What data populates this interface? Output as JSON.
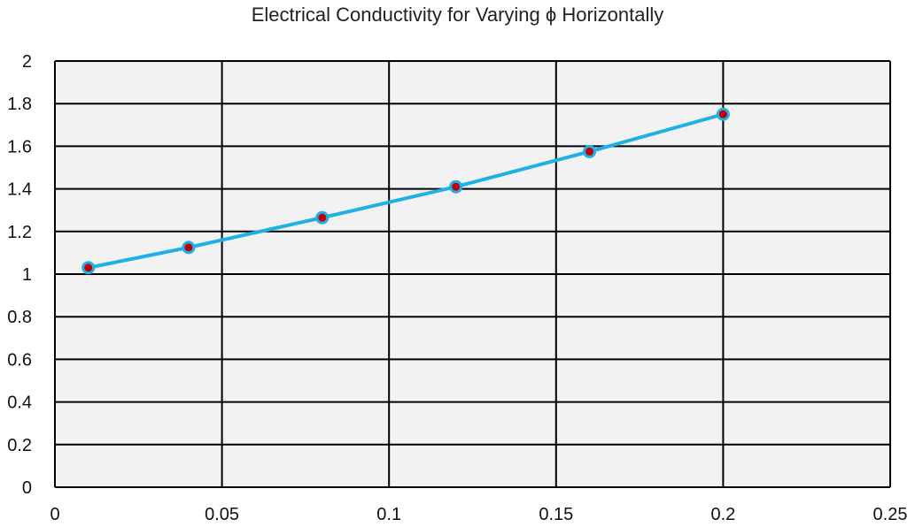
{
  "chart_data": {
    "type": "line",
    "title": "Electrical Conductivity for Varying ϕ Horizontally",
    "xlabel": "",
    "ylabel": "",
    "xlim": [
      0,
      0.25
    ],
    "ylim": [
      0,
      2
    ],
    "x_ticks": [
      "0",
      "0.05",
      "0.1",
      "0.15",
      "0.2",
      "0.25"
    ],
    "y_ticks": [
      "0",
      "0.2",
      "0.4",
      "0.6",
      "0.8",
      "1",
      "1.2",
      "1.4",
      "1.6",
      "1.8",
      "2"
    ],
    "grid": true,
    "legend": "none",
    "series": [
      {
        "x": [
          0.01,
          0.04,
          0.08,
          0.12,
          0.16,
          0.2
        ],
        "y": [
          1.03,
          1.125,
          1.265,
          1.41,
          1.575,
          1.75
        ]
      }
    ],
    "colors": {
      "line": "#1fb0e6",
      "marker_fill": "#c00000",
      "marker_edge": "#1fb0e6",
      "plot_background": "#f2f2f2",
      "grid": "#000000"
    }
  }
}
